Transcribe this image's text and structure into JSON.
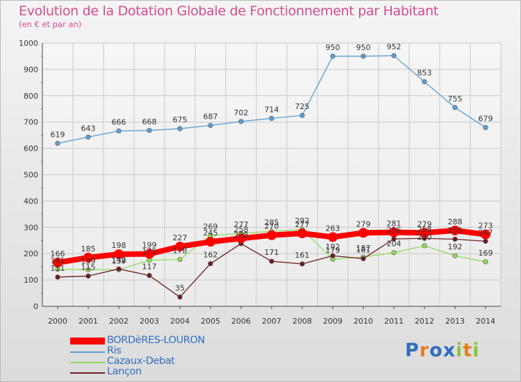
{
  "title": "Evolution de la Dotation Globale de Fonctionnement par Habitant",
  "subtitle": "(en € et par an)",
  "logo": {
    "text": "Proxiti",
    "letters": [
      "P",
      "r",
      "o",
      "x",
      "i",
      "t",
      "i"
    ],
    "colors": [
      "#2e6fbf",
      "#e67e22",
      "#2e6fbf",
      "#2e6fbf",
      "#8cc63f",
      "#e67e22",
      "#8cc63f"
    ]
  },
  "chart_data": {
    "type": "line",
    "title": "Evolution de la Dotation Globale de Fonctionnement par Habitant",
    "subtitle": "(en € et par an)",
    "xlabel": "",
    "ylabel": "",
    "ylim": [
      0,
      1000
    ],
    "yticks": [
      "0",
      "100",
      "200",
      "300",
      "400",
      "500",
      "600",
      "700",
      "800",
      "900",
      "1000"
    ],
    "categories": [
      "2000",
      "2001",
      "2002",
      "2003",
      "2004",
      "2005",
      "2006",
      "2007",
      "2008",
      "2009",
      "2010",
      "2011",
      "2012",
      "2013",
      "2014"
    ],
    "legend_position": "bottom-left",
    "series": [
      {
        "name": "BORDèRES-LOURON",
        "color": "#ff0000",
        "values": [
          166,
          185,
          198,
          199,
          227,
          245,
          258,
          270,
          277,
          263,
          279,
          281,
          279,
          288,
          273
        ],
        "labels": [
          "166",
          "185",
          "198",
          "199",
          "227",
          "245",
          "258",
          "270",
          "277",
          "263",
          "279",
          "281",
          "279",
          "288",
          "273"
        ]
      },
      {
        "name": "Ris",
        "color": "#5a9fd4",
        "values": [
          619,
          643,
          666,
          668,
          675,
          687,
          702,
          714,
          725,
          950,
          950,
          952,
          853,
          755,
          679
        ],
        "labels": [
          "619",
          "643",
          "666",
          "668",
          "675",
          "687",
          "702",
          "714",
          "725",
          "950",
          "950",
          "952",
          "853",
          "755",
          "679"
        ]
      },
      {
        "name": "Cazaux-Debat",
        "color": "#8fdc5a",
        "values": [
          141,
          139,
          139,
          175,
          178,
          269,
          277,
          285,
          292,
          179,
          187,
          204,
          230,
          192,
          169
        ],
        "labels": [
          "141",
          "139",
          "139",
          "175",
          "178",
          "269",
          "277",
          "285",
          "292",
          "179",
          "187",
          "204",
          "230",
          "192",
          "169"
        ]
      },
      {
        "name": "Lançon",
        "color": "#6b1e1e",
        "values": [
          111,
          115,
          142,
          117,
          35,
          162,
          238,
          171,
          161,
          192,
          181,
          256,
          258,
          255,
          247
        ],
        "labels": [
          "111",
          "115",
          "142",
          "117",
          "35",
          "162",
          "238",
          "171",
          "161",
          "192",
          "181",
          "256",
          "258",
          "255",
          "247"
        ]
      }
    ]
  }
}
